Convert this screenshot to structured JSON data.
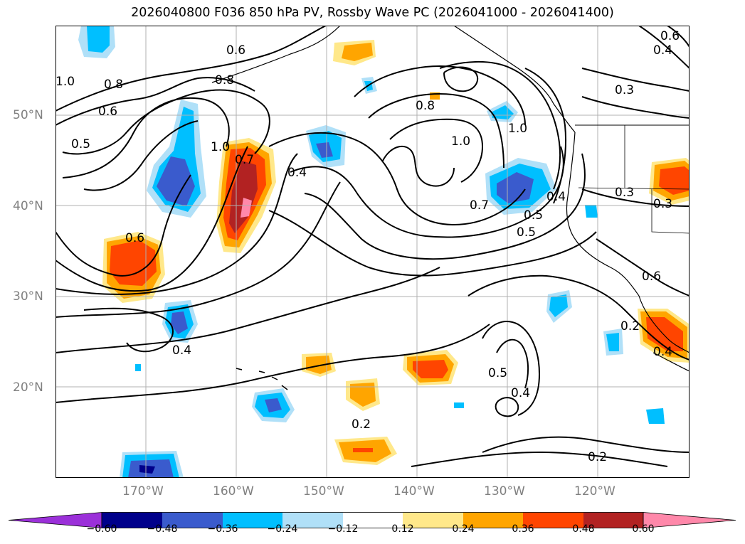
{
  "title": "2026040800 F036 850 hPa PV, Rossby Wave PC (2026041000 - 2026041400)",
  "lat_ticks": [
    "50°N",
    "40°N",
    "30°N",
    "20°N"
  ],
  "lon_ticks": [
    "170°W",
    "160°W",
    "150°W",
    "140°W",
    "130°W",
    "120°W"
  ],
  "contour_labels": [
    "0.6",
    "0.8",
    "0.8",
    "0.6",
    "1.0",
    "0.5",
    "1.0",
    "0.7",
    "0.4",
    "0.8",
    "1.0",
    "1.0",
    "0.7",
    "0.5",
    "0.4",
    "0.3",
    "0.3",
    "0.6",
    "0.4",
    "0.5",
    "0.4",
    "0.2",
    "0.2",
    "0.4",
    "0.6",
    "0.5",
    "0.2",
    "0.6",
    "0.4",
    "0.3"
  ],
  "colorbar": {
    "labels": [
      "−0.60",
      "−0.48",
      "−0.36",
      "−0.24",
      "−0.12",
      "0.12",
      "0.24",
      "0.36",
      "0.48",
      "0.60"
    ],
    "colors": [
      "#9b30d9",
      "#00008b",
      "#3a5bcd",
      "#00bfff",
      "#b0e0f8",
      "#ffffff",
      "#ffe88a",
      "#ffa500",
      "#ff4500",
      "#b22222",
      "#ff88aa"
    ]
  },
  "colors": {
    "grid": "#b0b0b0",
    "coast": "#000000",
    "tick_text": "#808080"
  }
}
